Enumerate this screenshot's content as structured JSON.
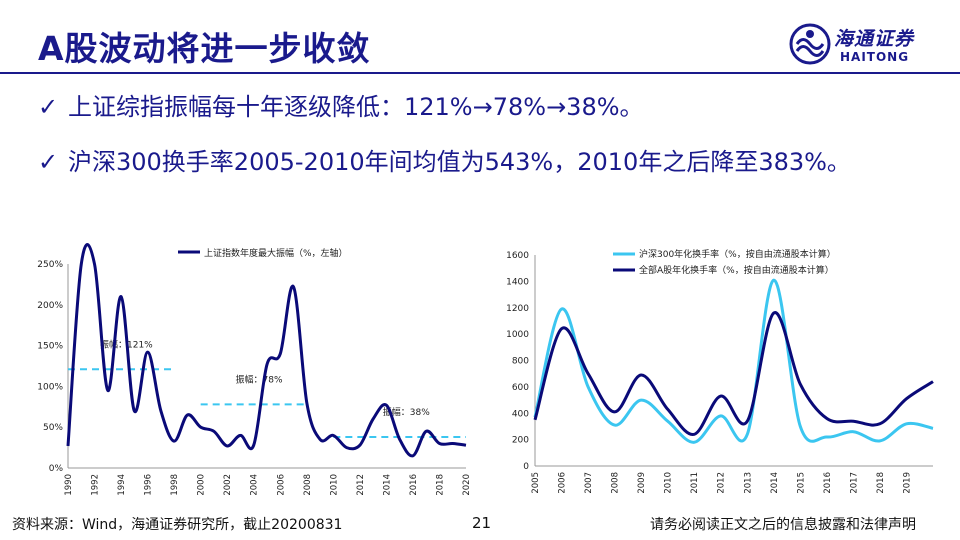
{
  "slide": {
    "title": "A股波动将进一步收敛",
    "brand_cn": "海通证券",
    "brand_en": "HAITONG",
    "bullets": [
      "上证综指振幅每十年逐级降低：121%→78%→38%。",
      "沪深300换手率2005-2010年间均值为543%，2010年之后降至383%。"
    ],
    "check_glyph": "✓",
    "source": "资料来源：Wind，海通证券研究所，截止20200831",
    "page_number": "21",
    "disclaimer": "请务必阅读正文之后的信息披露和法律声明",
    "colors": {
      "brand": "#1a1a8c",
      "series_dark": "#0a0a78",
      "series_light": "#3bc6f0",
      "avg_line": "#3bc6f0"
    }
  },
  "chart_data": [
    {
      "type": "line",
      "legend": [
        "上证指数年度最大振幅（%，左轴）"
      ],
      "legend_position": "top",
      "x": [
        "1990",
        "1991",
        "1992",
        "1993",
        "1994",
        "1995",
        "1996",
        "1997",
        "1998",
        "1999",
        "2000",
        "2001",
        "2002",
        "2003",
        "2004",
        "2005",
        "2006",
        "2007",
        "2008",
        "2009",
        "2010",
        "2011",
        "2012",
        "2013",
        "2014",
        "2015",
        "2016",
        "2017",
        "2018",
        "2019",
        "2020"
      ],
      "xticks": [
        "1990",
        "1992",
        "1994",
        "1996",
        "1998",
        "2000",
        "2002",
        "2004",
        "2006",
        "2008",
        "2010",
        "2012",
        "2014",
        "2016",
        "2018",
        "2020"
      ],
      "series": [
        {
          "name": "上证指数年度最大振幅（%，左轴）",
          "values": [
            27,
            250,
            250,
            95,
            210,
            70,
            142,
            70,
            33,
            65,
            50,
            45,
            27,
            40,
            28,
            127,
            140,
            222,
            80,
            35,
            40,
            25,
            28,
            60,
            77,
            35,
            15,
            45,
            30,
            30,
            28
          ]
        }
      ],
      "y_unit": "%",
      "ylim": [
        0,
        250
      ],
      "yticks": [
        "0%",
        "50%",
        "100%",
        "150%",
        "200%",
        "250%"
      ],
      "annotations": [
        {
          "label": "振幅：121%",
          "value": 121,
          "from": "1990",
          "to": "1998"
        },
        {
          "label": "振幅：78%",
          "value": 78,
          "from": "2000",
          "to": "2008"
        },
        {
          "label": "振幅：38%",
          "value": 38,
          "from": "2010",
          "to": "2020"
        }
      ],
      "grid": false
    },
    {
      "type": "line",
      "legend_position": "top",
      "x": [
        "2005",
        "2006",
        "2007",
        "2008",
        "2009",
        "2010",
        "2011",
        "2012",
        "2013",
        "2014",
        "2015",
        "2016",
        "2017",
        "2018",
        "2019",
        "2020"
      ],
      "xticks": [
        "2005",
        "2006",
        "2007",
        "2008",
        "2009",
        "2010",
        "2011",
        "2012",
        "2013",
        "2014",
        "2015",
        "2016",
        "2017",
        "2018",
        "2019"
      ],
      "series": [
        {
          "name": "沪深300年化换手率（%，按自由流通股本计算）",
          "values": [
            370,
            1190,
            600,
            310,
            500,
            340,
            180,
            380,
            240,
            1410,
            300,
            220,
            260,
            190,
            320,
            285
          ]
        },
        {
          "name": "全部A股年化换手率（%，按自由流通股本计算）",
          "values": [
            350,
            1040,
            700,
            410,
            690,
            430,
            240,
            530,
            340,
            1160,
            620,
            360,
            340,
            320,
            510,
            640
          ]
        }
      ],
      "ylim": [
        0,
        1600
      ],
      "yticks": [
        "0",
        "200",
        "400",
        "600",
        "800",
        "1000",
        "1200",
        "1400",
        "1600"
      ],
      "grid": false
    }
  ]
}
